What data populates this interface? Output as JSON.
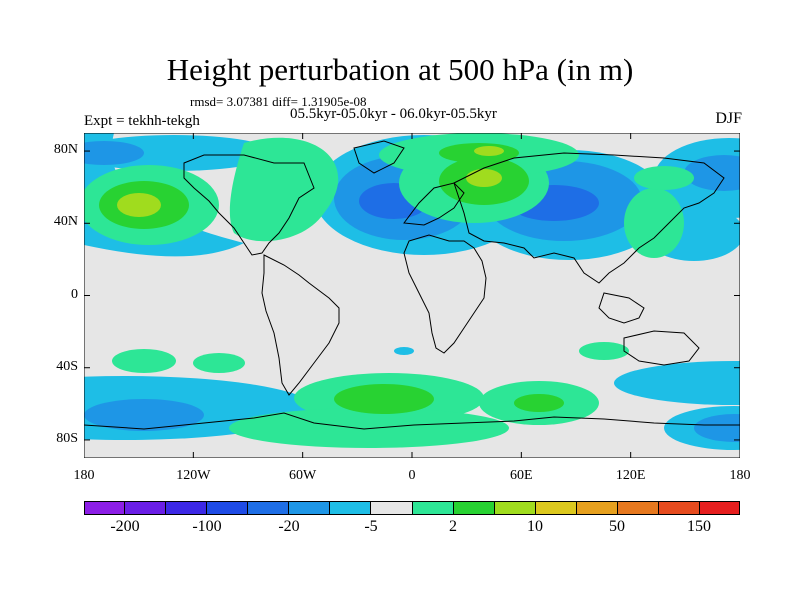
{
  "title": "Height perturbation at 500 hPa (in m)",
  "stats_line": "rmsd= 3.07381 diff= 1.31905e-08",
  "period_line": "05.5kyr-05.0kyr - 06.0kyr-05.5kyr",
  "expt_label": "Expt = tekhh-tekgh",
  "season_label": "DJF",
  "map": {
    "lat_range": [
      -90,
      90
    ],
    "lon_range": [
      -180,
      180
    ],
    "lat_ticks": [
      "80N",
      "40N",
      "0",
      "40S",
      "80S"
    ],
    "lon_ticks": [
      "180",
      "120W",
      "60W",
      "0",
      "60E",
      "120E",
      "180"
    ],
    "background_color": "#e6e6e6"
  },
  "colorbar": {
    "colors": [
      "#8c1ee6",
      "#6a1ee6",
      "#3c28e6",
      "#1e4be6",
      "#1e6ee6",
      "#1e96e6",
      "#1ebee6",
      "#e6e6e6",
      "#2de696",
      "#28d232",
      "#a0dc1e",
      "#dcc81e",
      "#e6a01e",
      "#e6781e",
      "#e64b1e",
      "#e61e1e"
    ],
    "labels": [
      "-200",
      "-100",
      "-20",
      "-5",
      "2",
      "10",
      "50",
      "150"
    ]
  }
}
